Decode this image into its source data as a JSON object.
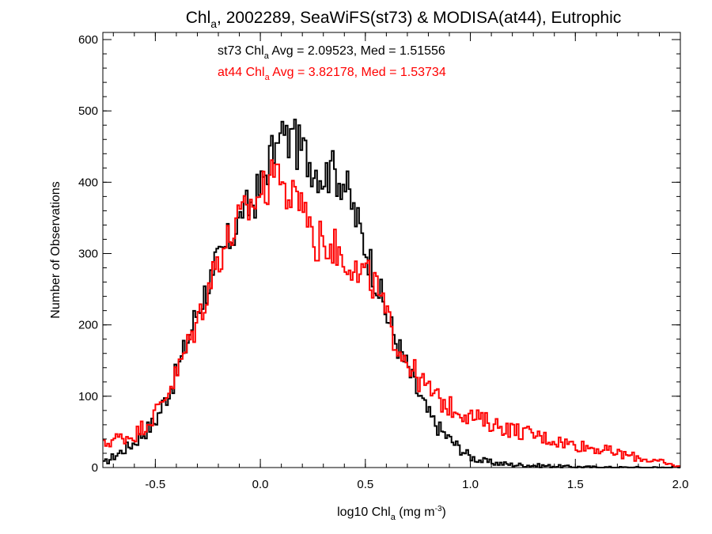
{
  "chart_data": {
    "type": "histogram-step",
    "title": {
      "pre": "Chl",
      "sub": "a",
      "post": ", 2002289, SeaWiFS(st73) & MODISA(at44), Eutrophic"
    },
    "xlabel": {
      "pre": "log10 Chl",
      "sub": "a",
      "mid": " (mg m",
      "sup": "-3",
      "post": ")"
    },
    "ylabel": "Number of Observations",
    "xlim": [
      -0.75,
      2.0
    ],
    "ylim": [
      0,
      610
    ],
    "xticks": [
      -0.5,
      0.0,
      0.5,
      1.0,
      1.5,
      2.0
    ],
    "xtick_labels": [
      "-0.5",
      "0.0",
      "0.5",
      "1.0",
      "1.5",
      "2.0"
    ],
    "yticks": [
      0,
      100,
      200,
      300,
      400,
      500,
      600
    ],
    "ytick_labels": [
      "0",
      "100",
      "200",
      "300",
      "400",
      "500",
      "600"
    ],
    "bin_width": 0.01,
    "annotations": [
      {
        "name": "st73",
        "pre": "st73 Chl",
        "sub": "a",
        "post": " Avg = 2.09523, Med = 1.51556",
        "color": "#000000"
      },
      {
        "name": "at44",
        "pre": "at44 Chl",
        "sub": "a",
        "post": " Avg = 3.82178, Med = 1.53734",
        "color": "#ff0000"
      }
    ],
    "series": [
      {
        "color": "#000000",
        "knots": [
          [
            -0.75,
            5
          ],
          [
            -0.7,
            15
          ],
          [
            -0.6,
            35
          ],
          [
            -0.5,
            65
          ],
          [
            -0.4,
            130
          ],
          [
            -0.3,
            220
          ],
          [
            -0.2,
            290
          ],
          [
            -0.1,
            345
          ],
          [
            0.0,
            390
          ],
          [
            0.05,
            440
          ],
          [
            0.1,
            460
          ],
          [
            0.15,
            455
          ],
          [
            0.2,
            445
          ],
          [
            0.25,
            425
          ],
          [
            0.3,
            410
          ],
          [
            0.35,
            415
          ],
          [
            0.4,
            400
          ],
          [
            0.45,
            355
          ],
          [
            0.5,
            310
          ],
          [
            0.55,
            265
          ],
          [
            0.6,
            215
          ],
          [
            0.65,
            175
          ],
          [
            0.7,
            140
          ],
          [
            0.75,
            105
          ],
          [
            0.8,
            75
          ],
          [
            0.85,
            55
          ],
          [
            0.9,
            40
          ],
          [
            0.95,
            27
          ],
          [
            1.0,
            15
          ],
          [
            1.05,
            10
          ],
          [
            1.1,
            7
          ],
          [
            1.2,
            4
          ],
          [
            1.3,
            3
          ],
          [
            1.5,
            1
          ],
          [
            1.7,
            0
          ],
          [
            2.0,
            0
          ]
        ],
        "spikes": [
          [
            0.17,
            488
          ],
          [
            0.16,
            475
          ],
          [
            0.1,
            485
          ],
          [
            0.08,
            455
          ],
          [
            0.33,
            430
          ],
          [
            0.38,
            425
          ],
          [
            0.12,
            410
          ],
          [
            -0.08,
            350
          ],
          [
            -0.3,
            260
          ],
          [
            -0.22,
            270
          ],
          [
            0.6,
            230
          ]
        ]
      },
      {
        "color": "#ff0000",
        "knots": [
          [
            -0.75,
            30
          ],
          [
            -0.7,
            40
          ],
          [
            -0.6,
            45
          ],
          [
            -0.5,
            75
          ],
          [
            -0.4,
            130
          ],
          [
            -0.3,
            205
          ],
          [
            -0.2,
            295
          ],
          [
            -0.1,
            345
          ],
          [
            0.0,
            385
          ],
          [
            0.05,
            400
          ],
          [
            0.1,
            395
          ],
          [
            0.15,
            375
          ],
          [
            0.2,
            370
          ],
          [
            0.25,
            335
          ],
          [
            0.3,
            320
          ],
          [
            0.35,
            310
          ],
          [
            0.4,
            295
          ],
          [
            0.45,
            285
          ],
          [
            0.5,
            270
          ],
          [
            0.55,
            255
          ],
          [
            0.6,
            210
          ],
          [
            0.65,
            175
          ],
          [
            0.7,
            150
          ],
          [
            0.75,
            125
          ],
          [
            0.8,
            110
          ],
          [
            0.85,
            95
          ],
          [
            0.9,
            85
          ],
          [
            0.95,
            80
          ],
          [
            1.0,
            72
          ],
          [
            1.1,
            62
          ],
          [
            1.2,
            53
          ],
          [
            1.3,
            46
          ],
          [
            1.4,
            38
          ],
          [
            1.5,
            32
          ],
          [
            1.6,
            27
          ],
          [
            1.7,
            20
          ],
          [
            1.8,
            14
          ],
          [
            1.9,
            8
          ],
          [
            1.95,
            4
          ],
          [
            2.0,
            1
          ]
        ],
        "spikes": [
          [
            0.08,
            425
          ],
          [
            0.05,
            410
          ],
          [
            0.2,
            385
          ],
          [
            0.28,
            345
          ],
          [
            0.3,
            310
          ],
          [
            0.12,
            350
          ],
          [
            0.47,
            260
          ],
          [
            0.27,
            290
          ]
        ]
      }
    ]
  }
}
